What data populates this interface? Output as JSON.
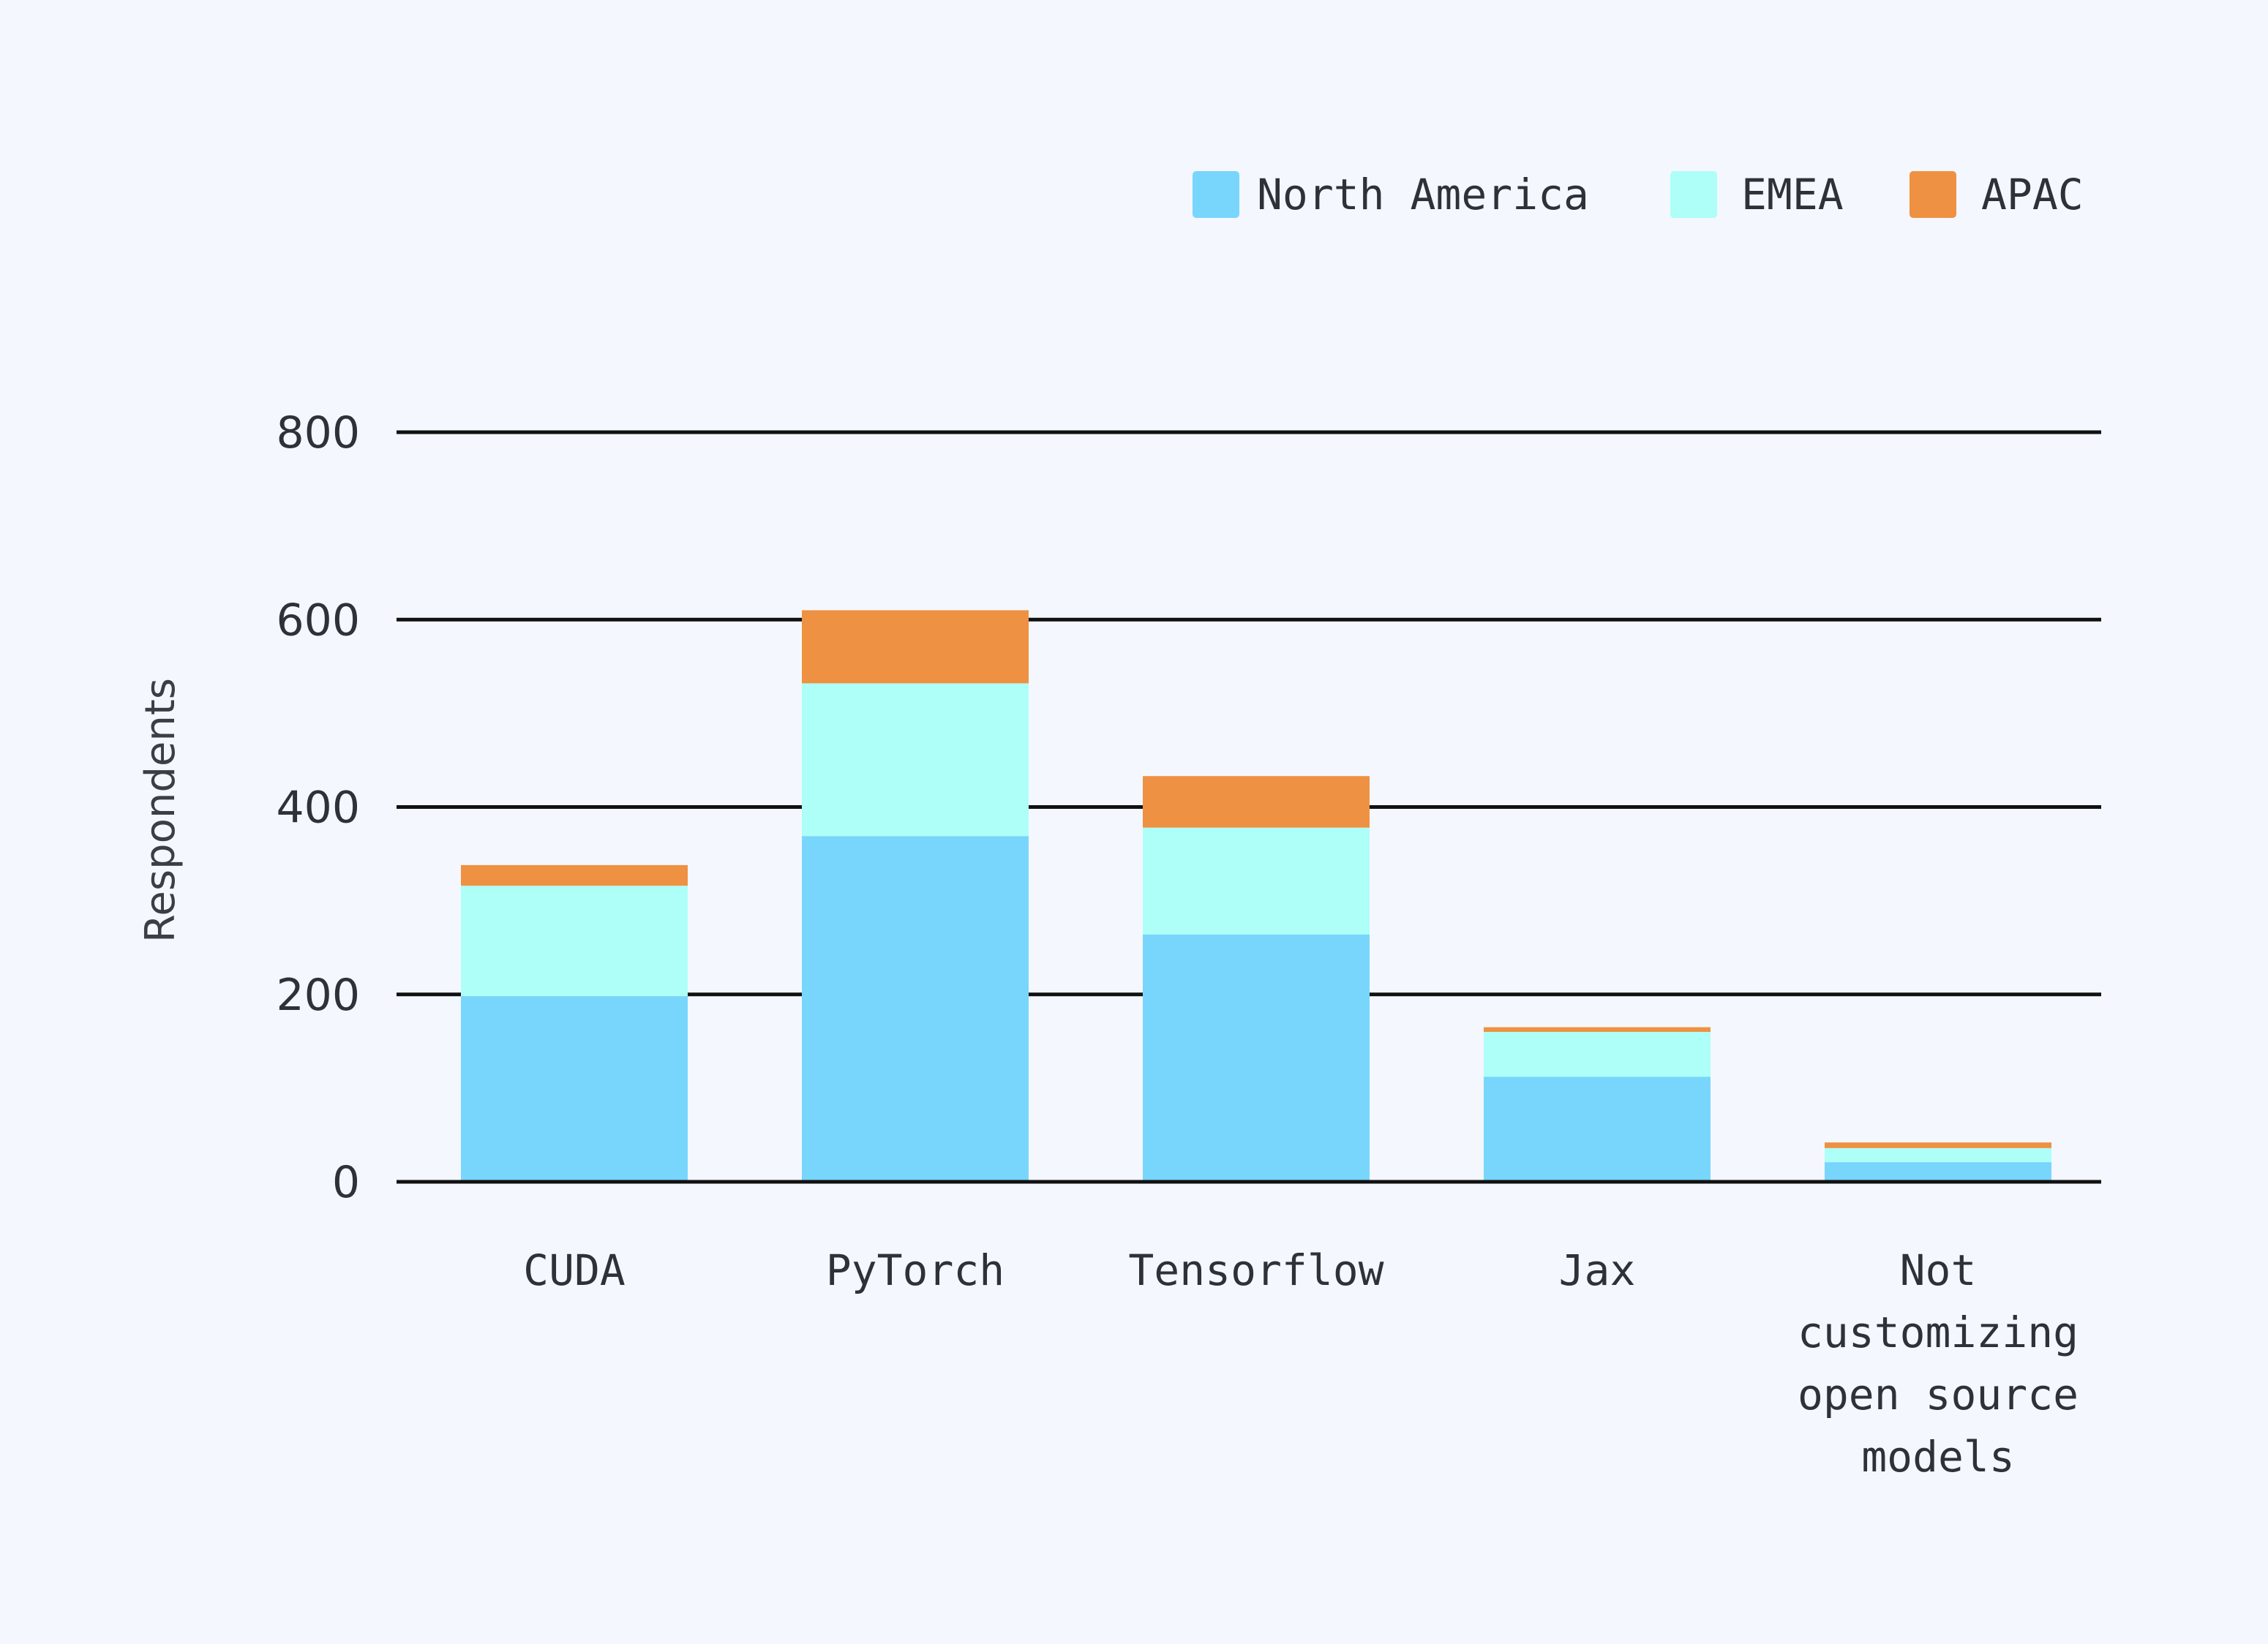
{
  "chart_data": {
    "type": "bar",
    "stacked": true,
    "categories": [
      "CUDA",
      "PyTorch",
      "Tensorflow",
      "Jax",
      "Not customizing open source models"
    ],
    "category_label_lines": [
      [
        "CUDA"
      ],
      [
        "PyTorch"
      ],
      [
        "Tensorflow"
      ],
      [
        "Jax"
      ],
      [
        "Not",
        "customizing",
        "open source",
        "models"
      ]
    ],
    "series": [
      {
        "name": "North America",
        "color": "#78d6fc",
        "values": [
          198,
          369,
          264,
          112,
          21
        ]
      },
      {
        "name": "EMEA",
        "color": "#adfff8",
        "values": [
          118,
          163,
          114,
          48,
          15
        ]
      },
      {
        "name": "APAC",
        "color": "#ef9142",
        "values": [
          22,
          78,
          55,
          5,
          6
        ]
      }
    ],
    "ylabel": "Respondents",
    "xlabel": "",
    "ylim": [
      0,
      800
    ],
    "yticks": [
      0,
      200,
      400,
      600,
      800
    ],
    "grid": true,
    "legend_position": "top-right",
    "colors": {
      "background": "#f4f7fe",
      "gridline": "#111111",
      "text": "#2e3238"
    }
  }
}
